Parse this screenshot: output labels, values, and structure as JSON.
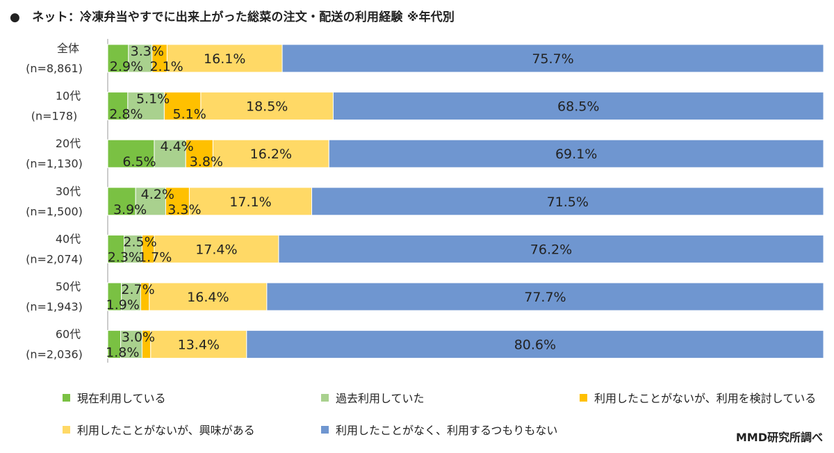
{
  "title": "●　ネット：冷凍弁当やすでに出来上がった総菜の注文・配送の利用経験 ※年代別",
  "source": "MMD研究所調べ",
  "colors": {
    "current": "#7ac143",
    "past": "#a9d18e",
    "consider": "#ffc000",
    "interest": "#ffd966",
    "none": "#6f96d0"
  },
  "chart_data": {
    "type": "bar",
    "orientation": "horizontal",
    "stacked": true,
    "normalized": true,
    "categories": [
      [
        "全体",
        "(n=8,861)"
      ],
      [
        "10代",
        "(n=178)"
      ],
      [
        "20代",
        "(n=1,130)"
      ],
      [
        "30代",
        "(n=1,500)"
      ],
      [
        "40代",
        "(n=2,074)"
      ],
      [
        "50代",
        "(n=1,943)"
      ],
      [
        "60代",
        "(n=2,036)"
      ]
    ],
    "series": [
      {
        "name": "現在利用している",
        "key": "current",
        "values": [
          2.9,
          2.8,
          6.5,
          3.9,
          2.3,
          1.9,
          1.8
        ]
      },
      {
        "name": "過去利用していた",
        "key": "past",
        "values": [
          3.3,
          5.1,
          4.4,
          4.2,
          2.5,
          2.7,
          3.0
        ]
      },
      {
        "name": "利用したことがないが、利用を検討している",
        "key": "consider",
        "values": [
          2.1,
          5.1,
          3.8,
          3.3,
          1.7,
          1.2,
          1.2
        ]
      },
      {
        "name": "利用したことがないが、興味がある",
        "key": "interest",
        "values": [
          16.1,
          18.5,
          16.2,
          17.1,
          17.4,
          16.4,
          13.4
        ]
      },
      {
        "name": "利用したことがなく、利用するつもりもない",
        "key": "none",
        "values": [
          75.7,
          68.5,
          69.1,
          71.5,
          76.2,
          77.7,
          80.6
        ]
      }
    ],
    "data_labels": [
      [
        "2.9%",
        "3.3%",
        "2.1%",
        "16.1%",
        "75.7%"
      ],
      [
        "2.8%",
        "5.1%",
        "5.1%",
        "18.5%",
        "68.5%"
      ],
      [
        "6.5%",
        "4.4%",
        "3.8%",
        "16.2%",
        "69.1%"
      ],
      [
        "3.9%",
        "4.2%",
        "3.3%",
        "17.1%",
        "71.5%"
      ],
      [
        "2.3%",
        "2.5%",
        "1.7%",
        "17.4%",
        "76.2%"
      ],
      [
        "1.9%",
        "2.7%",
        "",
        "16.4%",
        "77.7%"
      ],
      [
        "1.8%",
        "3.0%",
        "",
        "13.4%",
        "80.6%"
      ]
    ],
    "xlim": [
      0,
      100
    ],
    "legend_position": "bottom"
  }
}
